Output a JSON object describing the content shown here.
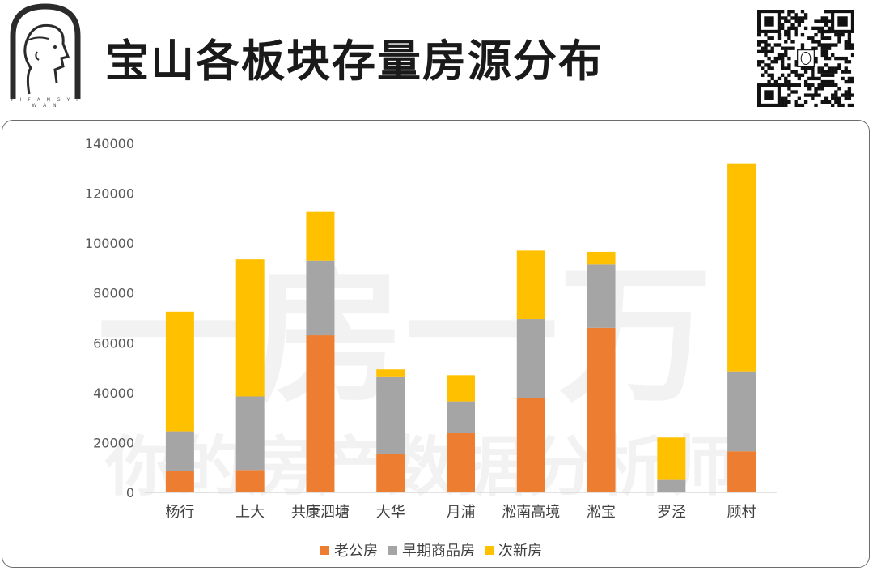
{
  "header": {
    "title": "宝山各板块存量房源分布",
    "logo_caption": "Y I F A N G Y I W A N",
    "logo_icon": "head-profile-logo",
    "qr_icon": "qr-code"
  },
  "watermark": {
    "line1": "一房一万",
    "line2": "你的房产数据分析师"
  },
  "chart_data": {
    "type": "bar",
    "stacked": true,
    "title": "",
    "xlabel": "",
    "ylabel": "",
    "ylim": [
      0,
      140000
    ],
    "yticks": [
      0,
      20000,
      40000,
      60000,
      80000,
      100000,
      120000,
      140000
    ],
    "ytick_labels": [
      "0",
      "20000",
      "40000",
      "60000",
      "80000",
      "100000",
      "120000",
      "140000"
    ],
    "grid": false,
    "legend_position": "bottom",
    "categories": [
      "杨行",
      "上大",
      "共康泗塘",
      "大华",
      "月浦",
      "淞南高境",
      "淞宝",
      "罗泾",
      "顾村"
    ],
    "series": [
      {
        "name": "老公房",
        "color": "#ED7D31",
        "values": [
          8500,
          9000,
          63000,
          15500,
          24000,
          38000,
          66000,
          0,
          16500
        ]
      },
      {
        "name": "早期商品房",
        "color": "#A5A5A5",
        "values": [
          16000,
          29500,
          30000,
          31000,
          12500,
          31500,
          25500,
          5000,
          32000
        ]
      },
      {
        "name": "次新房",
        "color": "#FFC000",
        "values": [
          48000,
          55000,
          19500,
          2800,
          10500,
          27500,
          5000,
          17000,
          83500
        ]
      }
    ]
  }
}
